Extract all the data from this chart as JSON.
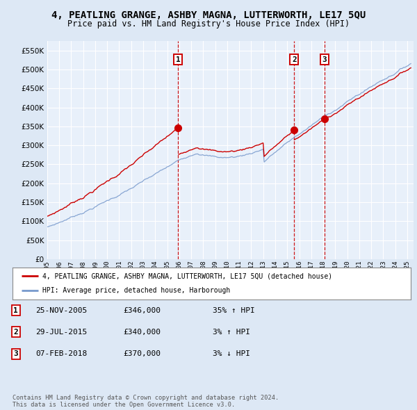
{
  "title": "4, PEATLING GRANGE, ASHBY MAGNA, LUTTERWORTH, LE17 5QU",
  "subtitle": "Price paid vs. HM Land Registry's House Price Index (HPI)",
  "ylabel_ticks": [
    0,
    50000,
    100000,
    150000,
    200000,
    250000,
    300000,
    350000,
    400000,
    450000,
    500000,
    550000
  ],
  "ylim": [
    0,
    575000
  ],
  "xlim_start": 1995.0,
  "xlim_end": 2025.5,
  "xtick_years": [
    1995,
    1996,
    1997,
    1998,
    1999,
    2000,
    2001,
    2002,
    2003,
    2004,
    2005,
    2006,
    2007,
    2008,
    2009,
    2010,
    2011,
    2012,
    2013,
    2014,
    2015,
    2016,
    2017,
    2018,
    2019,
    2020,
    2021,
    2022,
    2023,
    2024,
    2025
  ],
  "red_line_color": "#cc0000",
  "blue_line_color": "#7799cc",
  "background_color": "#dde8f5",
  "plot_bg_color": "#e8f0fa",
  "grid_color": "#ffffff",
  "dashed_line_color": "#cc0000",
  "sale_dates": [
    2005.9,
    2015.58,
    2018.1
  ],
  "sale_prices": [
    346000,
    340000,
    370000
  ],
  "sale_labels": [
    "1",
    "2",
    "3"
  ],
  "transactions": [
    {
      "label": "1",
      "date": "25-NOV-2005",
      "price": "£346,000",
      "change": "35% ↑ HPI"
    },
    {
      "label": "2",
      "date": "29-JUL-2015",
      "price": "£340,000",
      "change": "3% ↑ HPI"
    },
    {
      "label": "3",
      "date": "07-FEB-2018",
      "price": "£370,000",
      "change": "3% ↓ HPI"
    }
  ],
  "legend_line1": "4, PEATLING GRANGE, ASHBY MAGNA, LUTTERWORTH, LE17 5QU (detached house)",
  "legend_line2": "HPI: Average price, detached house, Harborough",
  "footer": "Contains HM Land Registry data © Crown copyright and database right 2024.\nThis data is licensed under the Open Government Licence v3.0."
}
